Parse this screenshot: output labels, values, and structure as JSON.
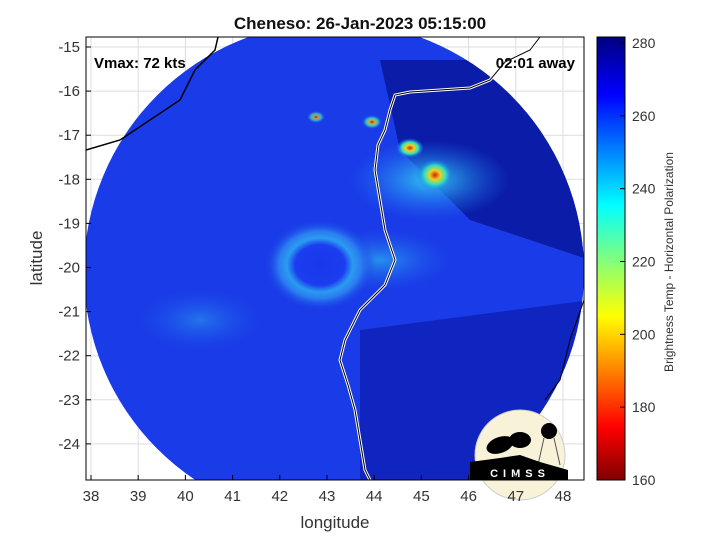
{
  "title": "Cheneso: 26-Jan-2023 05:15:00",
  "vmax_label": "Vmax: 72 kts",
  "time_label": "02:01 away",
  "xlabel": "longitude",
  "ylabel": "latitude",
  "x_ticks": [
    "38",
    "39",
    "40",
    "41",
    "42",
    "43",
    "44",
    "45",
    "46",
    "47",
    "48"
  ],
  "y_ticks": [
    "-15",
    "-16",
    "-17",
    "-18",
    "-19",
    "-20",
    "-21",
    "-22",
    "-23",
    "-24"
  ],
  "colorbar": {
    "label": "Brightness Temp - Horizontal Polarization",
    "ticks": [
      "280",
      "260",
      "240",
      "220",
      "200",
      "180",
      "160"
    ],
    "range": [
      160,
      280
    ]
  },
  "logo_text": "CIMSS"
}
